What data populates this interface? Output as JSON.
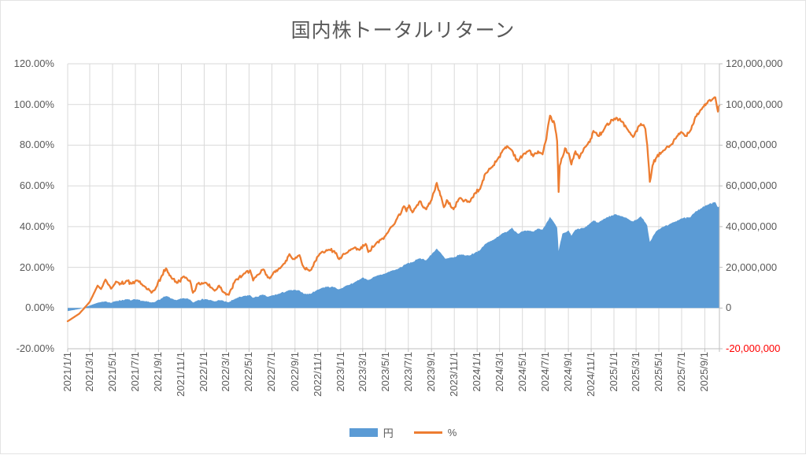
{
  "title": "国内株トータルリターン",
  "legend": [
    {
      "label": "円",
      "swatch": "area",
      "color": "#5B9BD5"
    },
    {
      "label": "%",
      "swatch": "line",
      "color": "#ED7D31"
    }
  ],
  "colors": {
    "series_yen": "#5B9BD5",
    "series_pct": "#ED7D31",
    "gridline": "#D9D9D9",
    "axis_line": "#BFBFBF",
    "axis_text": "#595959",
    "negative_tick": "#FF0000",
    "title_text": "#595959"
  },
  "chart_data": {
    "type": "combo",
    "title": "国内株トータルリターン",
    "grid": true,
    "legend_position": "bottom",
    "x_axis": {
      "kind": "date",
      "min": "2021-01-01",
      "max": "2025-10-10",
      "tick_labels": [
        "2021/1/1",
        "2021/3/1",
        "2021/5/1",
        "2021/7/1",
        "2021/9/1",
        "2021/11/1",
        "2022/1/1",
        "2022/3/1",
        "2022/5/1",
        "2022/7/1",
        "2022/9/1",
        "2022/11/1",
        "2023/1/1",
        "2023/3/1",
        "2023/5/1",
        "2023/7/1",
        "2023/9/1",
        "2023/11/1",
        "2024/1/1",
        "2024/3/1",
        "2024/5/1",
        "2024/7/1",
        "2024/9/1",
        "2024/11/1",
        "2025/1/1",
        "2025/3/1",
        "2025/5/1",
        "2025/7/1",
        "2025/9/1"
      ]
    },
    "left_axis": {
      "title": "%",
      "min": -20,
      "max": 120,
      "step": 20,
      "tick_labels": [
        "120.00%",
        "100.00%",
        "80.00%",
        "60.00%",
        "40.00%",
        "20.00%",
        "0.00%",
        "-20.00%"
      ]
    },
    "right_axis": {
      "title": "円",
      "min": -20000000,
      "max": 120000000,
      "step": 20000000,
      "tick_labels": [
        "120,000,000",
        "100,000,000",
        "80,000,000",
        "60,000,000",
        "40,000,000",
        "20,000,000",
        "0",
        "-20,000,000"
      ],
      "negative_label_color": "#FF0000"
    },
    "series": [
      {
        "name": "円",
        "type": "area",
        "axis": "right",
        "color": "#5B9BD5",
        "unit": "million JPY",
        "points": [
          [
            "2021-01-01",
            -1.5
          ],
          [
            "2021-02-01",
            -0.5
          ],
          [
            "2021-03-01",
            1.2
          ],
          [
            "2021-03-22",
            2.6
          ],
          [
            "2021-04-12",
            3.3
          ],
          [
            "2021-04-27",
            2.5
          ],
          [
            "2021-05-10",
            3.4
          ],
          [
            "2021-06-08",
            4.3
          ],
          [
            "2021-06-20",
            3.8
          ],
          [
            "2021-07-05",
            4.2
          ],
          [
            "2021-07-26",
            3.3
          ],
          [
            "2021-08-13",
            2.7
          ],
          [
            "2021-08-25",
            3.3
          ],
          [
            "2021-09-10",
            4.8
          ],
          [
            "2021-09-21",
            5.9
          ],
          [
            "2021-10-05",
            4.7
          ],
          [
            "2021-10-20",
            3.9
          ],
          [
            "2021-11-08",
            4.8
          ],
          [
            "2021-11-24",
            4.2
          ],
          [
            "2021-12-02",
            2.7
          ],
          [
            "2021-12-15",
            3.9
          ],
          [
            "2022-01-05",
            4.4
          ],
          [
            "2022-01-29",
            3.2
          ],
          [
            "2022-02-10",
            3.9
          ],
          [
            "2022-03-08",
            2.8
          ],
          [
            "2022-03-25",
            4.6
          ],
          [
            "2022-04-20",
            6.0
          ],
          [
            "2022-05-04",
            6.3
          ],
          [
            "2022-05-12",
            5.0
          ],
          [
            "2022-06-08",
            6.6
          ],
          [
            "2022-06-20",
            5.5
          ],
          [
            "2022-07-20",
            7.0
          ],
          [
            "2022-08-17",
            8.8
          ],
          [
            "2022-09-13",
            8.6
          ],
          [
            "2022-09-26",
            6.9
          ],
          [
            "2022-10-12",
            7.0
          ],
          [
            "2022-10-25",
            8.3
          ],
          [
            "2022-11-11",
            9.9
          ],
          [
            "2022-11-24",
            10.4
          ],
          [
            "2022-12-15",
            10.3
          ],
          [
            "2022-12-28",
            9.2
          ],
          [
            "2023-01-16",
            11.0
          ],
          [
            "2023-02-06",
            12.5
          ],
          [
            "2023-03-01",
            15.0
          ],
          [
            "2023-03-16",
            13.8
          ],
          [
            "2023-04-03",
            15.5
          ],
          [
            "2023-05-01",
            17.0
          ],
          [
            "2023-05-17",
            18.3
          ],
          [
            "2023-06-01",
            19.0
          ],
          [
            "2023-06-29",
            22.0
          ],
          [
            "2023-07-12",
            22.5
          ],
          [
            "2023-08-01",
            24.5
          ],
          [
            "2023-08-18",
            23.5
          ],
          [
            "2023-09-15",
            29.2
          ],
          [
            "2023-10-08",
            24.2
          ],
          [
            "2023-10-30",
            24.8
          ],
          [
            "2023-11-15",
            26.3
          ],
          [
            "2023-12-11",
            25.8
          ],
          [
            "2023-12-27",
            27.3
          ],
          [
            "2024-01-09",
            28.5
          ],
          [
            "2024-01-23",
            31.5
          ],
          [
            "2024-02-13",
            33.5
          ],
          [
            "2024-03-07",
            36.5
          ],
          [
            "2024-03-21",
            37.5
          ],
          [
            "2024-04-03",
            39.5
          ],
          [
            "2024-04-19",
            36.5
          ],
          [
            "2024-05-07",
            38.0
          ],
          [
            "2024-05-30",
            37.5
          ],
          [
            "2024-06-12",
            39.0
          ],
          [
            "2024-06-24",
            38.5
          ],
          [
            "2024-07-14",
            44.8
          ],
          [
            "2024-08-02",
            39.5
          ],
          [
            "2024-08-06",
            28.0
          ],
          [
            "2024-08-16",
            36.5
          ],
          [
            "2024-09-02",
            38.0
          ],
          [
            "2024-09-09",
            35.5
          ],
          [
            "2024-09-20",
            38.5
          ],
          [
            "2024-10-15",
            39.5
          ],
          [
            "2024-11-07",
            43.0
          ],
          [
            "2024-11-20",
            42.0
          ],
          [
            "2024-12-12",
            44.5
          ],
          [
            "2024-12-27",
            45.5
          ],
          [
            "2025-01-07",
            46.0
          ],
          [
            "2025-01-24",
            45.0
          ],
          [
            "2025-02-21",
            42.5
          ],
          [
            "2025-03-14",
            45.0
          ],
          [
            "2025-03-31",
            40.5
          ],
          [
            "2025-04-07",
            32.5
          ],
          [
            "2025-04-23",
            37.5
          ],
          [
            "2025-05-08",
            39.5
          ],
          [
            "2025-06-02",
            41.5
          ],
          [
            "2025-06-30",
            44.0
          ],
          [
            "2025-07-24",
            44.5
          ],
          [
            "2025-08-07",
            47.5
          ],
          [
            "2025-08-22",
            49.0
          ],
          [
            "2025-09-05",
            50.5
          ],
          [
            "2025-09-29",
            52.0
          ],
          [
            "2025-10-06",
            49.5
          ],
          [
            "2025-10-10",
            50.5
          ]
        ]
      },
      {
        "name": "%",
        "type": "line",
        "axis": "left",
        "color": "#ED7D31",
        "unit": "percent",
        "points": [
          [
            "2021-01-01",
            -6.5
          ],
          [
            "2021-02-01",
            -2.8
          ],
          [
            "2021-03-01",
            3.0
          ],
          [
            "2021-03-22",
            11.0
          ],
          [
            "2021-03-31",
            9.3
          ],
          [
            "2021-04-12",
            14.0
          ],
          [
            "2021-04-27",
            9.5
          ],
          [
            "2021-05-10",
            13.0
          ],
          [
            "2021-05-20",
            11.5
          ],
          [
            "2021-06-08",
            13.5
          ],
          [
            "2021-06-20",
            12.0
          ],
          [
            "2021-07-05",
            13.5
          ],
          [
            "2021-07-26",
            10.5
          ],
          [
            "2021-08-13",
            7.5
          ],
          [
            "2021-08-25",
            10.0
          ],
          [
            "2021-09-10",
            16.0
          ],
          [
            "2021-09-21",
            19.5
          ],
          [
            "2021-10-05",
            15.0
          ],
          [
            "2021-10-20",
            12.3
          ],
          [
            "2021-11-08",
            15.5
          ],
          [
            "2021-11-24",
            13.5
          ],
          [
            "2021-12-02",
            7.5
          ],
          [
            "2021-12-15",
            12.0
          ],
          [
            "2022-01-05",
            12.5
          ],
          [
            "2022-01-29",
            8.5
          ],
          [
            "2022-02-10",
            11.0
          ],
          [
            "2022-02-24",
            7.5
          ],
          [
            "2022-03-08",
            6.5
          ],
          [
            "2022-03-25",
            13.5
          ],
          [
            "2022-04-20",
            17.0
          ],
          [
            "2022-05-04",
            18.5
          ],
          [
            "2022-05-12",
            13.5
          ],
          [
            "2022-05-27",
            16.5
          ],
          [
            "2022-06-08",
            19.0
          ],
          [
            "2022-06-20",
            15.0
          ],
          [
            "2022-07-01",
            16.0
          ],
          [
            "2022-07-20",
            19.5
          ],
          [
            "2022-08-05",
            22.0
          ],
          [
            "2022-08-17",
            26.5
          ],
          [
            "2022-08-26",
            24.0
          ],
          [
            "2022-09-13",
            26.0
          ],
          [
            "2022-09-26",
            19.5
          ],
          [
            "2022-10-12",
            18.5
          ],
          [
            "2022-10-25",
            23.0
          ],
          [
            "2022-11-11",
            27.5
          ],
          [
            "2022-11-24",
            28.5
          ],
          [
            "2022-12-15",
            28.0
          ],
          [
            "2022-12-28",
            24.0
          ],
          [
            "2023-01-16",
            27.0
          ],
          [
            "2023-02-06",
            29.5
          ],
          [
            "2023-02-20",
            28.5
          ],
          [
            "2023-03-09",
            31.5
          ],
          [
            "2023-03-16",
            27.5
          ],
          [
            "2023-04-03",
            31.0
          ],
          [
            "2023-04-18",
            33.5
          ],
          [
            "2023-05-01",
            35.5
          ],
          [
            "2023-05-17",
            40.0
          ],
          [
            "2023-06-01",
            44.0
          ],
          [
            "2023-06-19",
            50.0
          ],
          [
            "2023-06-26",
            47.5
          ],
          [
            "2023-07-03",
            50.5
          ],
          [
            "2023-07-12",
            47.0
          ],
          [
            "2023-08-01",
            52.5
          ],
          [
            "2023-08-18",
            48.5
          ],
          [
            "2023-09-01",
            53.0
          ],
          [
            "2023-09-15",
            61.5
          ],
          [
            "2023-10-04",
            49.5
          ],
          [
            "2023-10-12",
            53.0
          ],
          [
            "2023-10-30",
            48.5
          ],
          [
            "2023-11-15",
            54.0
          ],
          [
            "2023-12-11",
            52.0
          ],
          [
            "2023-12-27",
            56.5
          ],
          [
            "2024-01-09",
            58.5
          ],
          [
            "2024-01-23",
            66.0
          ],
          [
            "2024-02-13",
            70.0
          ],
          [
            "2024-02-26",
            73.5
          ],
          [
            "2024-03-07",
            76.5
          ],
          [
            "2024-03-21",
            79.5
          ],
          [
            "2024-04-03",
            77.5
          ],
          [
            "2024-04-19",
            72.0
          ],
          [
            "2024-05-07",
            76.0
          ],
          [
            "2024-05-20",
            77.5
          ],
          [
            "2024-05-30",
            74.5
          ],
          [
            "2024-06-12",
            77.0
          ],
          [
            "2024-06-24",
            75.5
          ],
          [
            "2024-07-04",
            83.0
          ],
          [
            "2024-07-14",
            94.5
          ],
          [
            "2024-07-26",
            90.5
          ],
          [
            "2024-08-02",
            82.0
          ],
          [
            "2024-08-06",
            57.0
          ],
          [
            "2024-08-09",
            70.0
          ],
          [
            "2024-08-16",
            74.0
          ],
          [
            "2024-08-23",
            78.5
          ],
          [
            "2024-09-02",
            76.0
          ],
          [
            "2024-09-09",
            70.5
          ],
          [
            "2024-09-20",
            77.0
          ],
          [
            "2024-09-30",
            73.5
          ],
          [
            "2024-10-15",
            79.0
          ],
          [
            "2024-10-28",
            81.5
          ],
          [
            "2024-11-07",
            87.0
          ],
          [
            "2024-11-20",
            84.5
          ],
          [
            "2024-12-02",
            86.5
          ],
          [
            "2024-12-12",
            90.0
          ],
          [
            "2024-12-27",
            92.5
          ],
          [
            "2025-01-07",
            93.5
          ],
          [
            "2025-01-24",
            91.5
          ],
          [
            "2025-02-05",
            88.0
          ],
          [
            "2025-02-21",
            84.0
          ],
          [
            "2025-03-14",
            90.5
          ],
          [
            "2025-03-26",
            88.0
          ],
          [
            "2025-03-31",
            80.0
          ],
          [
            "2025-04-07",
            62.0
          ],
          [
            "2025-04-14",
            70.0
          ],
          [
            "2025-04-23",
            73.5
          ],
          [
            "2025-05-08",
            76.5
          ],
          [
            "2025-05-20",
            78.5
          ],
          [
            "2025-06-02",
            80.0
          ],
          [
            "2025-06-16",
            83.5
          ],
          [
            "2025-06-30",
            86.5
          ],
          [
            "2025-07-10",
            84.5
          ],
          [
            "2025-07-24",
            87.0
          ],
          [
            "2025-08-07",
            94.0
          ],
          [
            "2025-08-22",
            97.5
          ],
          [
            "2025-09-05",
            100.5
          ],
          [
            "2025-09-19",
            102.0
          ],
          [
            "2025-09-29",
            103.5
          ],
          [
            "2025-10-06",
            96.5
          ],
          [
            "2025-10-10",
            99.5
          ]
        ]
      }
    ]
  }
}
